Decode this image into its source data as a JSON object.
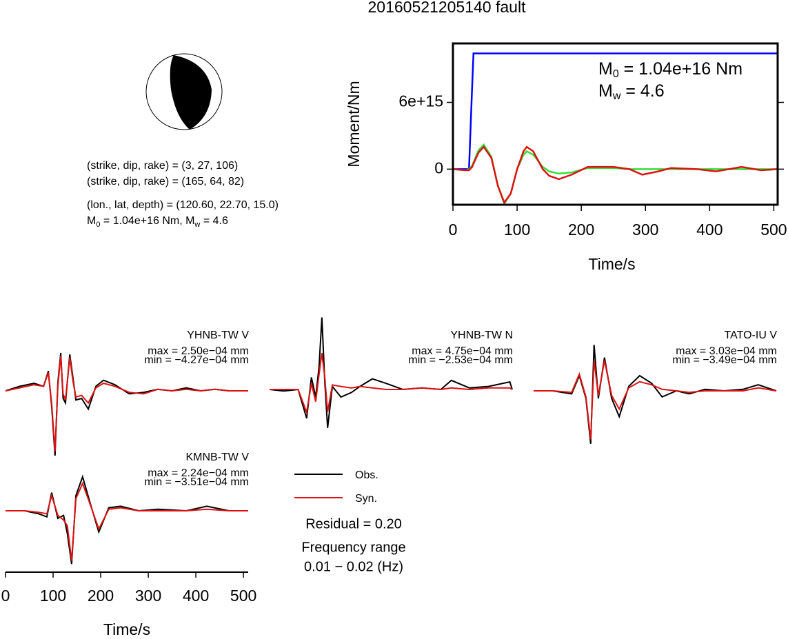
{
  "title": "20160521205140 fault",
  "mechanism": {
    "lines": [
      "(strike, dip, rake) = (3, 27, 106)",
      "(strike, dip, rake) = (165, 64, 82)",
      "(lon., lat, depth) = (120.60, 22.70, 15.0)"
    ],
    "moment_line": [
      "M",
      "0",
      " = 1.04e+16 Nm, M",
      "w",
      " = 4.6"
    ]
  },
  "residual": "Residual = 0.20",
  "frequency_label": "Frequency range",
  "frequency_range": "0.01 − 0.02 (Hz)",
  "chart_data": [
    {
      "type": "line",
      "x_label": "Time/s",
      "y_label": "Moment/Nm",
      "xlim": [
        0,
        506
      ],
      "ylim": [
        -3200000000000000.0,
        1.13e+16
      ],
      "xticks": [
        0,
        100,
        200,
        300,
        400,
        500
      ],
      "yticks": [
        0,
        {
          "value": 6000000000000000.0,
          "label": "6e+15"
        }
      ],
      "annotations": [
        [
          "M",
          "0",
          " = 1.04e+16 Nm"
        ],
        [
          "M",
          "w",
          " = 4.6"
        ]
      ],
      "x": [
        0,
        20,
        25,
        30,
        32,
        40,
        48,
        60,
        70,
        80,
        90,
        100,
        110,
        115,
        125,
        140,
        150,
        165,
        185,
        210,
        250,
        275,
        295,
        320,
        340,
        380,
        410,
        450,
        480,
        506
      ],
      "series": [
        {
          "color": "#0000ff",
          "values": [
            0,
            0,
            0,
            7500000000000000.0,
            1.04e+16,
            1.04e+16,
            1.04e+16,
            1.04e+16,
            1.04e+16,
            1.04e+16,
            1.04e+16,
            1.04e+16,
            1.04e+16,
            1.04e+16,
            1.04e+16,
            1.04e+16,
            1.04e+16,
            1.04e+16,
            1.04e+16,
            1.04e+16,
            1.04e+16,
            1.04e+16,
            1.04e+16,
            1.04e+16,
            1.04e+16,
            1.04e+16,
            1.04e+16,
            1.04e+16,
            1.04e+16,
            1.04e+16
          ]
        },
        {
          "color": "#33dd33",
          "values": [
            0,
            -100000000000000.0,
            0,
            300000000000000.0,
            600000000000000.0,
            1700000000000000.0,
            2200000000000000.0,
            1100000000000000.0,
            -1500000000000000.0,
            -3100000000000000.0,
            -2200000000000000.0,
            0,
            1300000000000000.0,
            1600000000000000.0,
            1300000000000000.0,
            200000000000000.0,
            -200000000000000.0,
            -400000000000000.0,
            -300000000000000.0,
            100000000000000.0,
            100000000000000.0,
            0,
            0,
            0,
            0,
            0,
            0,
            0,
            0,
            0
          ]
        },
        {
          "color": "#dd1111",
          "values": [
            0,
            -100000000000000.0,
            -100000000000000.0,
            200000000000000.0,
            500000000000000.0,
            1500000000000000.0,
            2000000000000000.0,
            1000000000000000.0,
            -1500000000000000.0,
            -3000000000000000.0,
            -2200000000000000.0,
            0,
            1600000000000000.0,
            2000000000000000.0,
            1600000000000000.0,
            0,
            -600000000000000.0,
            -900000000000000.0,
            -500000000000000.0,
            200000000000000.0,
            200000000000000.0,
            0,
            -500000000000000.0,
            -200000000000000.0,
            100000000000000.0,
            0,
            -200000000000000.0,
            200000000000000.0,
            -100000000000000.0,
            0
          ]
        }
      ]
    },
    {
      "type": "line",
      "station": "YHNB-TW V",
      "max_label": "max = 2.50e−04 mm",
      "min_label": "min = −4.27e−04 mm",
      "x": [
        0,
        30,
        60,
        80,
        90,
        97,
        104,
        110,
        116,
        121,
        126,
        135,
        142,
        148,
        160,
        174,
        190,
        206,
        230,
        260,
        290,
        320,
        350,
        380,
        410,
        440,
        470,
        510
      ],
      "series": [
        {
          "name": "Obs.",
          "color": "#000000",
          "values": [
            0,
            3e-05,
            5e-05,
            3e-05,
            0.00013,
            -0.0001,
            -0.000427,
            5e-05,
            0.00025,
            -5e-05,
            -8e-05,
            0.00024,
            8e-05,
            -6e-05,
            -5e-05,
            -0.00012,
            3e-05,
            7e-05,
            4e-05,
            -2e-05,
            -1e-05,
            1e-05,
            0,
            2e-05,
            0,
            1e-05,
            0,
            0
          ]
        },
        {
          "name": "Syn.",
          "color": "#dd1111",
          "values": [
            0,
            2e-05,
            4e-05,
            3e-05,
            0.00012,
            -8e-05,
            -0.0004,
            3e-05,
            0.00023,
            -2e-05,
            -6e-05,
            0.00022,
            6e-05,
            -4e-05,
            -3e-05,
            -8e-05,
            2e-05,
            5e-05,
            3e-05,
            -1e-05,
            -2e-05,
            1e-05,
            0,
            1e-05,
            0,
            1e-05,
            0,
            0
          ]
        }
      ]
    },
    {
      "type": "line",
      "station": "YHNB-TW N",
      "max_label": "max = 4.75e−04 mm",
      "min_label": "min = −2.53e−04 mm",
      "x": [
        0,
        30,
        60,
        78,
        88,
        97,
        104,
        110,
        116,
        122,
        132,
        150,
        172,
        190,
        216,
        245,
        280,
        320,
        360,
        382,
        420,
        460,
        505,
        510
      ],
      "series": [
        {
          "name": "Obs.",
          "color": "#000000",
          "values": [
            0,
            -1e-05,
            0,
            -0.00019,
            8e-05,
            -5e-05,
            0.00015,
            0.000475,
            5e-05,
            -0.000253,
            2e-05,
            -5e-05,
            -2e-05,
            2e-05,
            7e-05,
            4e-05,
            0,
            1e-05,
            0,
            6e-05,
            1e-05,
            2e-05,
            5e-05,
            0
          ]
        },
        {
          "name": "Syn.",
          "color": "#dd1111",
          "values": [
            0,
            0,
            0,
            -0.00015,
            4e-05,
            -8e-05,
            0.0001,
            0.00024,
            8e-05,
            -0.00015,
            3e-05,
            2e-05,
            1e-05,
            2e-05,
            1e-05,
            0,
            0,
            1e-05,
            0,
            1e-05,
            0,
            1e-05,
            1e-05,
            0
          ]
        }
      ]
    },
    {
      "type": "line",
      "station": "TATO-IU V",
      "max_label": "max = 3.03e−04 mm",
      "min_label": "min = −3.49e−04 mm",
      "x": [
        0,
        40,
        80,
        96,
        110,
        120,
        127,
        136,
        149,
        164,
        180,
        200,
        223,
        248,
        270,
        300,
        327,
        360,
        400,
        440,
        472,
        510
      ],
      "series": [
        {
          "name": "Obs.",
          "color": "#000000",
          "values": [
            0,
            0,
            -2e-05,
            0.0001,
            -5e-05,
            -0.000349,
            0.000303,
            -5e-05,
            0.00022,
            -5e-05,
            -0.00017,
            3e-05,
            0.0001,
            5e-05,
            -4e-05,
            0,
            -2e-05,
            1e-05,
            0,
            1e-05,
            4e-05,
            0
          ]
        },
        {
          "name": "Syn.",
          "color": "#dd1111",
          "values": [
            0,
            0,
            -1e-05,
            0.00011,
            -4e-05,
            -0.00032,
            0.0002,
            -3e-05,
            0.0002,
            -3e-05,
            -0.00012,
            2e-05,
            6e-05,
            4e-05,
            1e-05,
            0,
            -1e-05,
            0,
            0,
            0,
            2e-05,
            0
          ]
        }
      ]
    },
    {
      "type": "line",
      "station": "KMNB-TW V",
      "max_label": "max = 2.24e−04 mm",
      "min_label": "min = −3.51e−04 mm",
      "x_label": "Time/s",
      "xlim": [
        0,
        510
      ],
      "xticks": [
        0,
        100,
        200,
        300,
        400,
        500
      ],
      "x": [
        0,
        40,
        70,
        87,
        97,
        110,
        122,
        130,
        139,
        148,
        162,
        177,
        196,
        217,
        242,
        280,
        320,
        380,
        423,
        470,
        510
      ],
      "series": [
        {
          "name": "Obs.",
          "color": "#000000",
          "values": [
            0,
            0,
            -2e-05,
            -4e-05,
            0.00012,
            -5e-05,
            -3e-05,
            -0.00015,
            -0.000351,
            0.0001,
            0.000224,
            6e-05,
            -0.00014,
            2e-05,
            3e-05,
            0,
            1e-05,
            0,
            3e-05,
            0,
            0
          ]
        },
        {
          "name": "Syn.",
          "color": "#dd1111",
          "values": [
            0,
            0,
            -1e-05,
            -2e-05,
            0.0001,
            -3e-05,
            -6e-05,
            -0.0001,
            -0.00033,
            8e-05,
            0.00018,
            5e-05,
            -0.00012,
            1e-05,
            2e-05,
            0,
            0,
            0,
            1e-05,
            0,
            0
          ]
        }
      ]
    }
  ]
}
